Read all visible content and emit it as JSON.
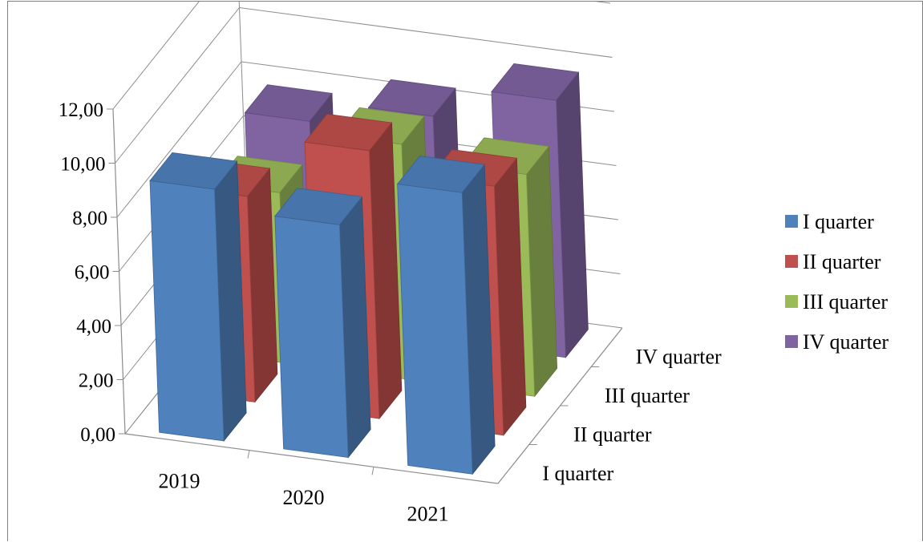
{
  "chart_data": {
    "type": "bar",
    "variant": "3d-column",
    "title": "",
    "xlabel": "",
    "ylabel": "",
    "categories": [
      "2019",
      "2020",
      "2021"
    ],
    "series": [
      {
        "name": "I quarter",
        "color": "#4F81BD",
        "values": [
          9.3,
          8.6,
          10.4
        ]
      },
      {
        "name": "II quarter",
        "color": "#C0504D",
        "values": [
          7.6,
          9.9,
          9.2
        ]
      },
      {
        "name": "III quarter",
        "color": "#9BBB59",
        "values": [
          6.3,
          8.7,
          8.2
        ]
      },
      {
        "name": "IV quarter",
        "color": "#8064A2",
        "values": [
          7.5,
          8.3,
          9.5
        ]
      }
    ],
    "ylim": [
      0,
      12
    ],
    "y_ticks": [
      "0,00",
      "2,00",
      "4,00",
      "6,00",
      "8,00",
      "10,00",
      "12,00"
    ],
    "grid": true,
    "legend": "right"
  }
}
